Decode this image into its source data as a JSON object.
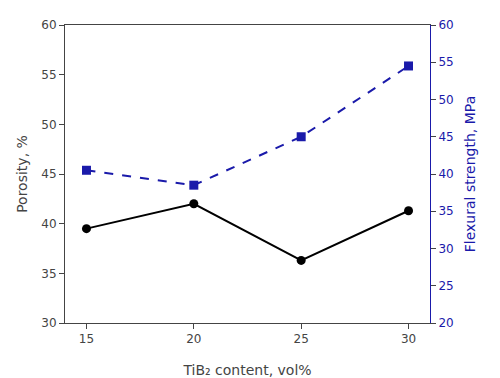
{
  "chart_data": {
    "type": "line",
    "x": [
      15,
      20,
      25,
      30
    ],
    "xlabel": "TiB₂ content, vol%",
    "ylabel": "Porosity, %",
    "y2label": "Flexural strength, MPa",
    "xlim": [
      14,
      31
    ],
    "xticks": [
      15,
      20,
      25,
      30
    ],
    "ylim": [
      30,
      60
    ],
    "yticks": [
      30,
      35,
      40,
      45,
      50,
      55,
      60
    ],
    "y2lim": [
      20,
      60
    ],
    "y2ticks": [
      20,
      25,
      30,
      35,
      40,
      45,
      50,
      55,
      60
    ],
    "grid": false,
    "series": [
      {
        "color": "#000000",
        "marker": "circle",
        "line_style": "solid",
        "values": [
          39.5,
          42.0,
          36.3,
          41.3
        ]
      },
      {
        "color": "#1a1aaa",
        "marker": "square",
        "line_style": "dashed",
        "axis": "y2",
        "values": [
          40.5,
          38.5,
          45.0,
          54.5
        ]
      }
    ]
  }
}
